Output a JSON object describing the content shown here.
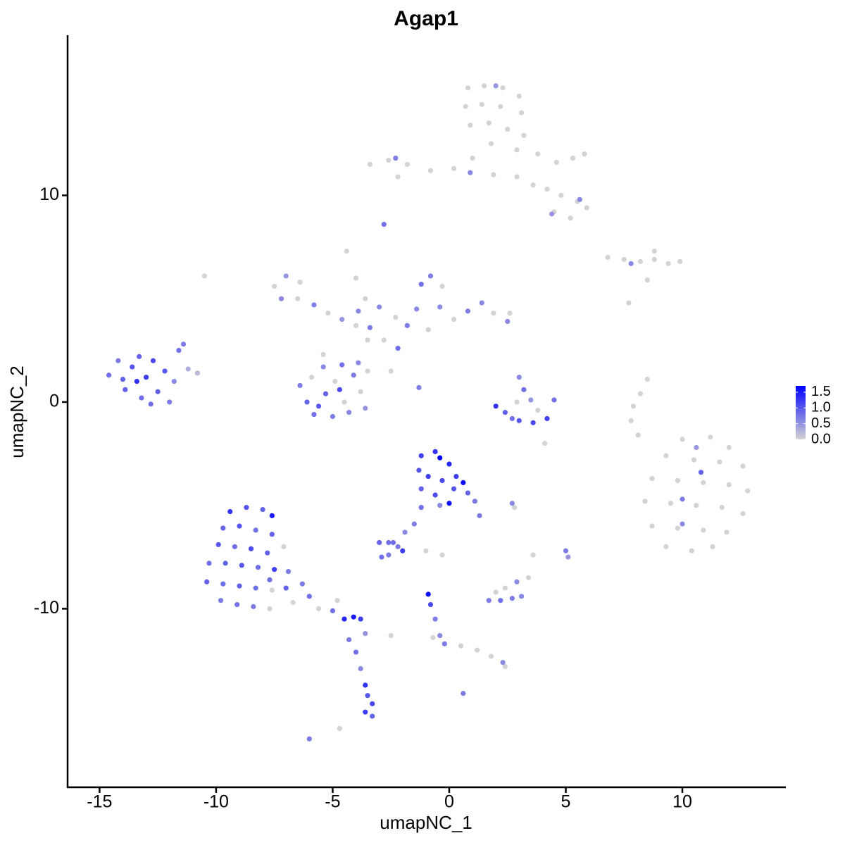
{
  "chart_data": {
    "type": "scatter",
    "title": "Agap1",
    "x_label": "umapNC_1",
    "y_label": "umapNC_2",
    "xlim": [
      -16.37,
      14.44
    ],
    "ylim": [
      -18.64,
      17.75
    ],
    "xticks": [
      -15,
      -10,
      -5,
      0,
      5,
      10
    ],
    "yticks": [
      -10,
      0,
      10
    ],
    "color_scale": {
      "low": "#d3d3d3",
      "high": "#0000ff",
      "lim": [
        0,
        1.7
      ],
      "ticks": [
        {
          "value": 0,
          "label": "0.0"
        },
        0.5,
        {
          "value": 1,
          "label": "1.0"
        },
        1.5
      ]
    },
    "x": [
      0.8,
      1.5,
      2.3,
      3.0,
      0.7,
      1.4,
      2.2,
      3.1,
      0.9,
      1.7,
      2.5,
      3.2,
      1.8,
      2.9,
      3.8,
      4.6,
      5.3,
      5.8,
      1.0,
      0.2,
      -0.8,
      -1.8,
      -2.6,
      -3.4,
      -2.2,
      1.9,
      2.9,
      3.6,
      4.2,
      4.8,
      5.5,
      5.9,
      4.5,
      5.2,
      -2.3,
      0.9,
      4.4,
      5.6,
      -2.8,
      2.0,
      6.8,
      7.5,
      8.2,
      8.8,
      9.4,
      9.9,
      8.8,
      7.8,
      8.5,
      7.7,
      10.0,
      11.2,
      12.0,
      9.3,
      10.5,
      11.6,
      12.6,
      8.7,
      9.8,
      10.9,
      12.0,
      12.8,
      8.4,
      9.5,
      10.6,
      11.7,
      12.6,
      8.7,
      9.8,
      10.9,
      11.9,
      9.3,
      10.4,
      11.3,
      10.8,
      10.0,
      10.0,
      10.6,
      -14.6,
      -14.2,
      -13.9,
      -13.6,
      -13.3,
      -13.2,
      -13.0,
      -12.7,
      -12.5,
      -12.2,
      -12.0,
      -11.8,
      -11.6,
      -11.4,
      -11.2,
      -10.8,
      -12.8,
      -14.0,
      -13.4,
      -10.5,
      -7.5,
      -7.0,
      -6.4,
      -7.2,
      -6.5,
      -5.8,
      -5.2,
      -4.6,
      -4.0,
      -3.4,
      -3.9,
      -4.4,
      -4.0,
      -3.6,
      -3.0,
      -2.3,
      -1.8,
      -1.4,
      -1.2,
      -0.8,
      -0.3,
      -0.4,
      0.2,
      0.8,
      1.4,
      1.9,
      2.5,
      2.6,
      -0.9,
      -2.2,
      -2.8,
      -3.5,
      -2.5,
      -1.3,
      -5.4,
      -3.9,
      -6.4,
      -6.1,
      -5.8,
      -5.9,
      -5.4,
      -5.3,
      -5.0,
      -4.9,
      -4.6,
      -4.5,
      -4.3,
      -4.1,
      -3.8,
      -3.6,
      -3.5,
      -5.6,
      -4.7,
      3.0,
      3.2,
      2.9,
      3.5,
      3.8,
      2.4,
      2.0,
      3.0,
      3.6,
      4.2,
      4.5,
      2.7,
      4.1,
      8.5,
      8.2,
      7.9,
      7.8,
      8.1,
      -1.2,
      -0.6,
      -0.4,
      0.0,
      0.3,
      -1.3,
      -0.9,
      -0.3,
      0.2,
      0.6,
      0.8,
      1.1,
      1.3,
      -1.2,
      -0.6,
      0.0,
      -0.4,
      -1.2,
      -1.5,
      -1.9,
      -2.4,
      2.7,
      2.8,
      -9.4,
      -8.7,
      -8.0,
      -7.6,
      -9.7,
      -9.0,
      -8.3,
      -7.6,
      -9.9,
      -9.2,
      -8.5,
      -7.8,
      -7.1,
      -10.3,
      -9.6,
      -8.9,
      -8.2,
      -7.5,
      -6.9,
      -10.4,
      -9.7,
      -9.0,
      -8.3,
      -7.6,
      -7.0,
      -6.3,
      -9.8,
      -9.1,
      -8.4,
      -7.7,
      -6.0,
      -5.6,
      -5.0,
      -4.5,
      -4.1,
      -3.8,
      -6.7,
      -4.8,
      -7.7,
      -4.3,
      -4.0,
      -3.8,
      -3.6,
      -3.5,
      -3.3,
      -3.6,
      -3.3,
      -6.0,
      -4.7,
      -3.6,
      -3.0,
      -2.6,
      -2.2,
      -2.0,
      -2.6,
      -2.9,
      -1.0,
      -0.3,
      1.7,
      2.2,
      2.7,
      3.1,
      2.4,
      2.9,
      2.0,
      3.4,
      5.0,
      5.1,
      3.6,
      -0.9,
      -0.8,
      -0.6,
      -0.4,
      -0.2,
      0.5,
      1.2,
      1.8,
      2.3,
      2.4,
      0.6,
      -0.7,
      -2.5
    ],
    "y": [
      15.2,
      15.3,
      15.2,
      14.8,
      14.3,
      14.4,
      14.3,
      14.0,
      13.4,
      13.5,
      13.2,
      12.9,
      12.5,
      12.2,
      12.0,
      11.6,
      11.8,
      12.0,
      11.8,
      11.3,
      11.2,
      11.5,
      11.7,
      11.5,
      10.9,
      11.0,
      10.9,
      10.5,
      10.3,
      10.0,
      9.7,
      9.4,
      9.2,
      8.9,
      11.8,
      11.1,
      9.1,
      9.8,
      8.6,
      15.3,
      7.0,
      6.9,
      6.8,
      6.9,
      6.7,
      6.8,
      7.3,
      6.7,
      5.9,
      4.8,
      -1.8,
      -1.7,
      -2.2,
      -2.6,
      -2.8,
      -2.9,
      -3.1,
      -3.7,
      -3.8,
      -3.9,
      -4.0,
      -4.3,
      -4.8,
      -4.9,
      -5.0,
      -5.1,
      -5.4,
      -6.0,
      -6.1,
      -6.2,
      -6.3,
      -7.0,
      -7.2,
      -7.0,
      -3.4,
      -4.7,
      -5.9,
      -2.2,
      1.3,
      2.0,
      0.6,
      1.7,
      2.2,
      0.2,
      1.2,
      2.0,
      0.5,
      1.5,
      0.0,
      1.0,
      2.5,
      2.8,
      1.6,
      1.4,
      -0.1,
      1.1,
      1.0,
      6.1,
      5.6,
      6.1,
      5.8,
      5.0,
      5.0,
      4.7,
      4.3,
      4.0,
      3.7,
      3.6,
      4.4,
      7.3,
      6.0,
      5.0,
      4.6,
      4.1,
      3.7,
      4.5,
      5.7,
      6.1,
      5.6,
      4.6,
      4.0,
      4.4,
      4.8,
      4.3,
      3.9,
      4.3,
      3.5,
      2.6,
      3.0,
      3.0,
      1.5,
      0.7,
      2.3,
      1.9,
      0.8,
      0.0,
      -0.6,
      1.2,
      1.7,
      0.4,
      -0.7,
      1.0,
      1.8,
      0.0,
      -0.5,
      1.3,
      0.5,
      -0.3,
      1.5,
      -0.2,
      0.6,
      1.2,
      0.6,
      0.0,
      0.1,
      -0.4,
      -0.5,
      -0.2,
      -0.9,
      -1.0,
      -0.8,
      0.1,
      -0.8,
      -2.0,
      1.1,
      0.4,
      -0.2,
      -0.9,
      -1.6,
      -2.6,
      -2.4,
      -2.7,
      -3.0,
      -3.6,
      -3.3,
      -3.6,
      -3.8,
      -4.2,
      -3.9,
      -4.4,
      -4.8,
      -5.5,
      -4.2,
      -4.5,
      -4.9,
      -5.0,
      -5.1,
      -5.9,
      -6.3,
      -6.8,
      -4.9,
      -5.1,
      -5.3,
      -5.1,
      -5.2,
      -5.5,
      -6.1,
      -6.0,
      -6.2,
      -6.4,
      -6.9,
      -7.0,
      -7.1,
      -7.3,
      -7.0,
      -7.8,
      -7.8,
      -7.9,
      -8.0,
      -8.1,
      -8.2,
      -8.7,
      -8.8,
      -8.9,
      -9.0,
      -9.1,
      -9.0,
      -8.8,
      -9.6,
      -9.8,
      -9.9,
      -10.0,
      -9.4,
      -10.0,
      -10.1,
      -10.5,
      -10.4,
      -10.5,
      -9.7,
      -9.6,
      -8.6,
      -11.5,
      -12.1,
      -12.9,
      -13.7,
      -14.2,
      -14.6,
      -15.0,
      -15.2,
      -16.3,
      -15.8,
      -11.2,
      -6.8,
      -6.8,
      -7.0,
      -7.2,
      -7.4,
      -7.5,
      -7.2,
      -7.4,
      -9.6,
      -9.6,
      -9.5,
      -9.4,
      -9.0,
      -8.7,
      -9.2,
      -8.5,
      -7.2,
      -7.5,
      -7.4,
      -9.3,
      -9.8,
      -10.5,
      -11.3,
      -11.7,
      -11.8,
      -12.0,
      -12.3,
      -12.6,
      -12.8,
      -14.1,
      -11.4,
      -11.3
    ],
    "values": [
      0,
      0,
      0,
      0,
      0,
      0,
      0,
      0,
      0,
      0,
      0,
      0,
      0,
      0,
      0,
      0,
      0,
      0,
      0,
      0,
      0,
      0,
      0,
      0,
      0,
      0,
      0,
      0,
      0,
      0,
      0,
      0,
      0,
      0,
      0.7,
      0.6,
      0.5,
      0.6,
      0.8,
      0.5,
      0,
      0,
      0,
      0,
      0,
      0,
      0,
      0.6,
      0,
      0,
      0,
      0,
      0,
      0,
      0,
      0,
      0,
      0,
      0,
      0,
      0,
      0,
      0,
      0,
      0,
      0,
      0,
      0,
      0,
      0,
      0,
      0,
      0,
      0,
      0.9,
      0.7,
      0.6,
      0.5,
      0.8,
      0.7,
      0.9,
      1.0,
      0.9,
      0.8,
      1.2,
      1.1,
      0.9,
      1.0,
      0.7,
      0.6,
      0.8,
      0.7,
      0.3,
      0.2,
      0.8,
      0.9,
      1.3,
      0,
      0,
      0.5,
      0,
      0.6,
      0,
      0.7,
      0,
      0.5,
      0,
      0.7,
      0.6,
      0,
      0,
      0,
      0.6,
      0,
      0.7,
      0.6,
      0.8,
      0.7,
      0,
      0.6,
      0,
      0.7,
      0.6,
      0,
      0.6,
      0,
      0,
      0.8,
      0,
      0,
      0,
      0.7,
      0,
      0.6,
      0.7,
      0.9,
      0.8,
      0,
      0.6,
      0.9,
      0.7,
      0,
      0.8,
      0,
      0.6,
      0.7,
      0,
      0.5,
      0,
      1.0,
      1.1,
      0.6,
      0.8,
      0,
      0.5,
      0,
      0.9,
      1.3,
      1.0,
      1.1,
      1.2,
      0.8,
      0.8,
      0,
      0,
      0,
      0,
      0,
      0,
      1.2,
      1.3,
      1.7,
      1.4,
      1.2,
      1.0,
      1.2,
      1.1,
      1.0,
      1.6,
      0.9,
      0.7,
      0.7,
      0.9,
      1.1,
      1.6,
      0.6,
      0.8,
      0.7,
      0.6,
      0.8,
      0.6,
      0,
      1.3,
      1.0,
      0.9,
      1.5,
      0.9,
      1.0,
      0.8,
      0.9,
      1.0,
      0.8,
      1.1,
      0.9,
      0,
      0.8,
      0.9,
      1.0,
      0.8,
      1.2,
      0.7,
      0.9,
      0.8,
      0.9,
      0.8,
      0,
      0.9,
      0.7,
      0.7,
      0.8,
      0.7,
      0,
      0.8,
      0,
      0.8,
      1.4,
      1.5,
      1.2,
      0,
      0,
      0.8,
      0.7,
      0.8,
      0.6,
      1.3,
      1.0,
      1.1,
      1.2,
      0.9,
      0.7,
      0,
      0.5,
      0.9,
      0.8,
      0.7,
      1.2,
      0.7,
      0.8,
      0,
      0,
      0.7,
      0.8,
      0.7,
      0.6,
      0,
      0.6,
      0,
      0,
      0.7,
      0.5,
      0,
      1.6,
      1.1,
      0.7,
      0.6,
      0.7,
      0,
      0,
      0,
      0.6,
      0,
      0.7,
      0,
      0
    ]
  }
}
